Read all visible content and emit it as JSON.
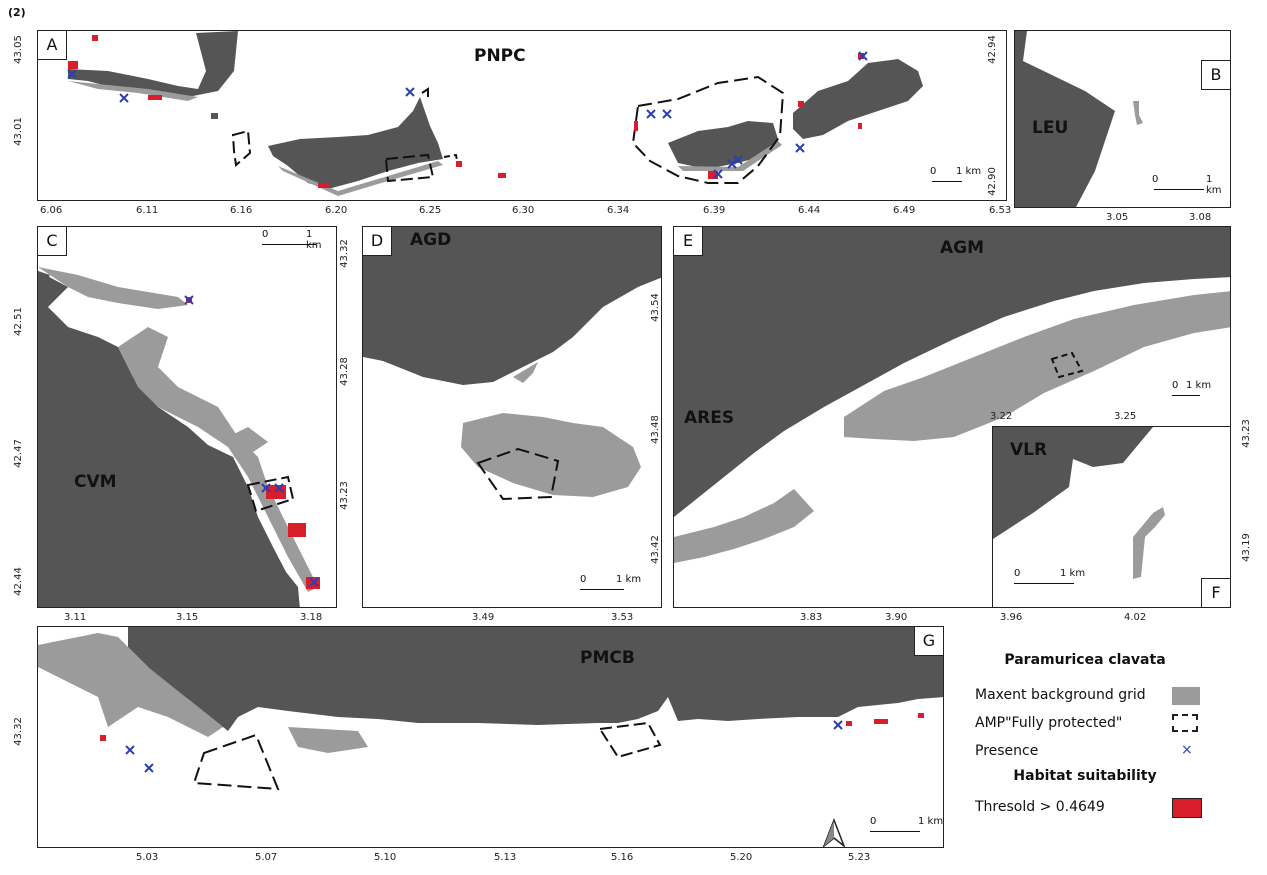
{
  "figure_label": "(2)",
  "panels": {
    "A": {
      "letter": "A",
      "site": "PNPC",
      "x_ticks": [
        "6.06",
        "6.11",
        "6.16",
        "6.20",
        "6.25",
        "6.30",
        "6.34",
        "6.39",
        "6.44",
        "6.49",
        "6.53"
      ],
      "y_ticks": [
        "43.05",
        "43.01"
      ],
      "scale_zero": "0",
      "scale_label": "1 km"
    },
    "B": {
      "letter": "B",
      "site": "LEU",
      "x_ticks": [
        "3.05",
        "3.08"
      ],
      "y_ticks": [
        "42.94",
        "42.90"
      ],
      "scale_zero": "0",
      "scale_label": "1 km"
    },
    "C": {
      "letter": "C",
      "site": "CVM",
      "x_ticks": [
        "3.11",
        "3.15",
        "3.18"
      ],
      "y_ticks": [
        "42.51",
        "42.47",
        "42.44"
      ],
      "scale_zero": "0",
      "scale_label": "1 km"
    },
    "D": {
      "letter": "D",
      "site": "AGD",
      "x_ticks": [
        "3.49",
        "3.53"
      ],
      "y_ticks": [
        "43.32",
        "43.28",
        "43.23"
      ],
      "scale_zero": "0",
      "scale_label": "1 km"
    },
    "E": {
      "letter": "E",
      "site": "AGM",
      "site2": "ARES",
      "x_ticks": [
        "3.83",
        "3.90"
      ],
      "y_ticks": [
        "43.54",
        "43.48",
        "43.42"
      ],
      "scale_zero": "0",
      "scale_label": "1 km"
    },
    "F": {
      "letter": "F",
      "site": "VLR",
      "x_ticks_top": [
        "3.22",
        "3.25"
      ],
      "x_ticks": [
        "3.96",
        "4.02"
      ],
      "y_ticks": [
        "43.23",
        "43.19"
      ],
      "scale_zero": "0",
      "scale_label": "1 km"
    },
    "G": {
      "letter": "G",
      "site": "PMCB",
      "x_ticks": [
        "5.03",
        "5.07",
        "5.10",
        "5.13",
        "5.16",
        "5.20",
        "5.23"
      ],
      "y_ticks": [
        "43.32"
      ],
      "scale_zero": "0",
      "scale_label": "1 km"
    }
  },
  "legend": {
    "species_title": "Paramuricea clavata",
    "items": [
      {
        "label": "Maxent background grid",
        "color": "#9b9b9b"
      },
      {
        "label": "AMP\"Fully protected\"",
        "color": "#222222"
      },
      {
        "label": "Presence",
        "color": "#2a3fb0"
      }
    ],
    "suitability_title": "Habitat suitability",
    "threshold_label": "Thresold > 0.4649",
    "threshold_color": "#d81e2a"
  },
  "colors": {
    "land": "#555555",
    "background_grid": "#9b9b9b",
    "suitable": "#d81e2a",
    "presence": "#2a3fb0"
  },
  "icons": {
    "north_arrow": "north-arrow-icon"
  }
}
